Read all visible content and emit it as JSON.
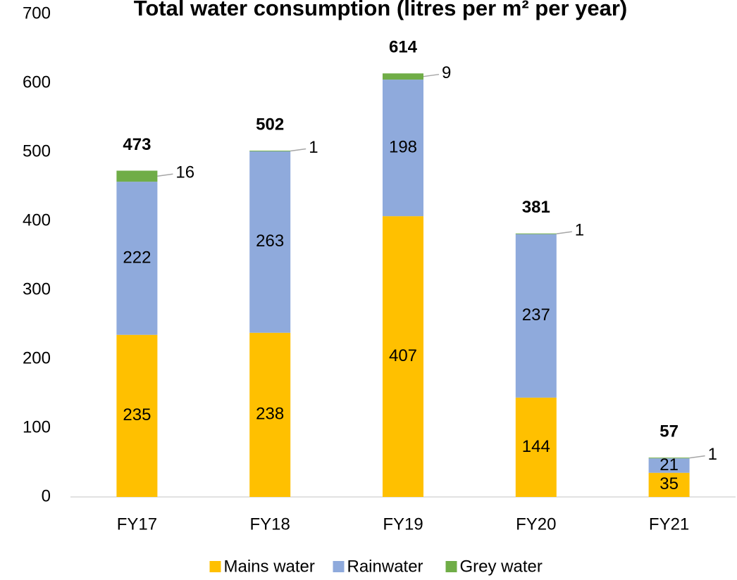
{
  "chart_data": {
    "type": "stacked_bar",
    "title": "Total water consumption (litres per m² per year)",
    "categories": [
      "FY17",
      "FY18",
      "FY19",
      "FY20",
      "FY21"
    ],
    "series": [
      {
        "name": "Mains water",
        "color": "#FFC000",
        "values": [
          235,
          238,
          407,
          144,
          35
        ]
      },
      {
        "name": "Rainwater",
        "color": "#8FAADC",
        "values": [
          222,
          263,
          198,
          237,
          21
        ]
      },
      {
        "name": "Grey water",
        "color": "#70AD47",
        "values": [
          16,
          1,
          9,
          1,
          1
        ]
      }
    ],
    "totals": [
      473,
      502,
      614,
      381,
      57
    ],
    "ylim": [
      0,
      700
    ],
    "yticks": [
      0,
      100,
      200,
      300,
      400,
      500,
      600,
      700
    ]
  }
}
